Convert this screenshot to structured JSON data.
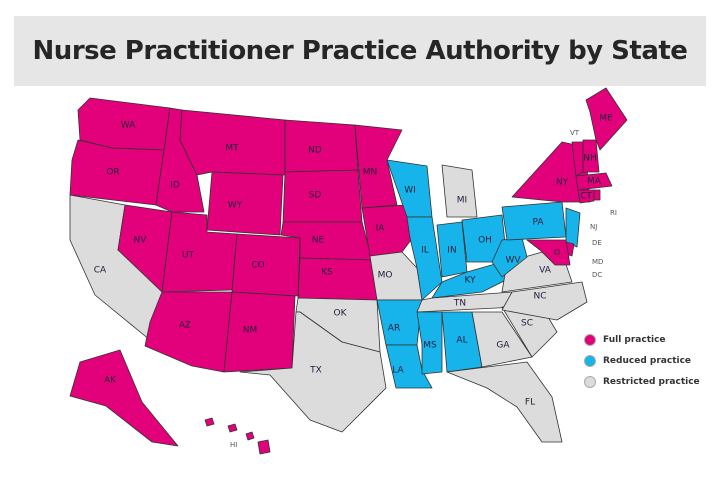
{
  "title": "Nurse Practitioner Practice Authority by State",
  "colors": {
    "full": "#e3007b",
    "reduced": "#16b4ea",
    "restricted": "#dcdcdc"
  },
  "legend": [
    {
      "key": "full",
      "label": "Full practice"
    },
    {
      "key": "reduced",
      "label": "Reduced practice"
    },
    {
      "key": "restricted",
      "label": "Restricted practice"
    }
  ],
  "states": [
    {
      "code": "WA",
      "status": "full"
    },
    {
      "code": "OR",
      "status": "full"
    },
    {
      "code": "CA",
      "status": "restricted"
    },
    {
      "code": "NV",
      "status": "full"
    },
    {
      "code": "ID",
      "status": "full"
    },
    {
      "code": "MT",
      "status": "full"
    },
    {
      "code": "WY",
      "status": "full"
    },
    {
      "code": "UT",
      "status": "full"
    },
    {
      "code": "CO",
      "status": "full"
    },
    {
      "code": "AZ",
      "status": "full"
    },
    {
      "code": "NM",
      "status": "full"
    },
    {
      "code": "ND",
      "status": "full"
    },
    {
      "code": "SD",
      "status": "full"
    },
    {
      "code": "NE",
      "status": "full"
    },
    {
      "code": "KS",
      "status": "full"
    },
    {
      "code": "OK",
      "status": "restricted"
    },
    {
      "code": "TX",
      "status": "restricted"
    },
    {
      "code": "MN",
      "status": "full"
    },
    {
      "code": "IA",
      "status": "full"
    },
    {
      "code": "MO",
      "status": "restricted"
    },
    {
      "code": "AR",
      "status": "reduced"
    },
    {
      "code": "LA",
      "status": "reduced"
    },
    {
      "code": "WI",
      "status": "reduced"
    },
    {
      "code": "IL",
      "status": "reduced"
    },
    {
      "code": "MI",
      "status": "restricted"
    },
    {
      "code": "IN",
      "status": "reduced"
    },
    {
      "code": "OH",
      "status": "reduced"
    },
    {
      "code": "KY",
      "status": "reduced"
    },
    {
      "code": "TN",
      "status": "restricted"
    },
    {
      "code": "MS",
      "status": "reduced"
    },
    {
      "code": "AL",
      "status": "reduced"
    },
    {
      "code": "GA",
      "status": "restricted"
    },
    {
      "code": "FL",
      "status": "restricted"
    },
    {
      "code": "SC",
      "status": "restricted"
    },
    {
      "code": "NC",
      "status": "restricted"
    },
    {
      "code": "VA",
      "status": "restricted"
    },
    {
      "code": "WV",
      "status": "reduced"
    },
    {
      "code": "PA",
      "status": "reduced"
    },
    {
      "code": "NY",
      "status": "full"
    },
    {
      "code": "NJ",
      "status": "reduced"
    },
    {
      "code": "DE",
      "status": "full"
    },
    {
      "code": "MD",
      "status": "full"
    },
    {
      "code": "DC",
      "status": "full"
    },
    {
      "code": "VT",
      "status": "full"
    },
    {
      "code": "NH",
      "status": "full"
    },
    {
      "code": "ME",
      "status": "full"
    },
    {
      "code": "MA",
      "status": "full"
    },
    {
      "code": "CT",
      "status": "full"
    },
    {
      "code": "RI",
      "status": "full"
    },
    {
      "code": "AK",
      "status": "full"
    },
    {
      "code": "HI",
      "status": "full"
    }
  ]
}
